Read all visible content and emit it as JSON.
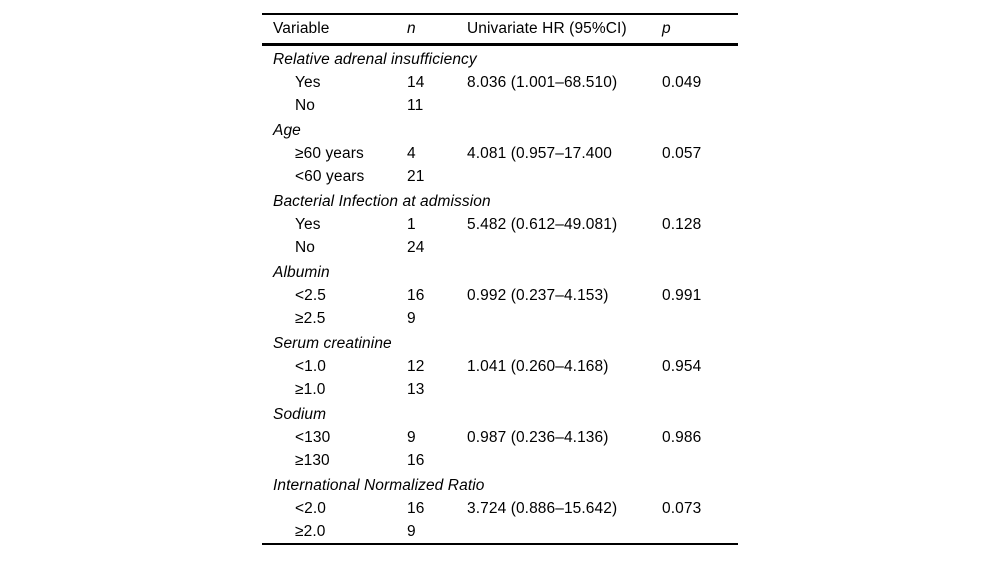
{
  "page": {
    "background_color": "#ffffff",
    "text_color": "#000000",
    "rule_color": "#000000"
  },
  "table": {
    "header": {
      "variable": "Variable",
      "n": "n",
      "hr": "Univariate HR (95%CI)",
      "p": "p"
    },
    "rows": [
      {
        "type": "group",
        "variable": "Relative adrenal insufficiency",
        "n": "",
        "hr": "",
        "p": ""
      },
      {
        "type": "item",
        "variable": "Yes",
        "n": "14",
        "hr": "8.036 (1.001–68.510)",
        "p": "0.049"
      },
      {
        "type": "item",
        "variable": "No",
        "n": "11",
        "hr": "",
        "p": ""
      },
      {
        "type": "group",
        "variable": "Age",
        "n": "",
        "hr": "",
        "p": ""
      },
      {
        "type": "item",
        "variable": "≥60 years",
        "n": "4",
        "hr": "4.081 (0.957–17.400",
        "p": "0.057"
      },
      {
        "type": "item",
        "variable": "<60 years",
        "n": "21",
        "hr": "",
        "p": ""
      },
      {
        "type": "group",
        "variable": "Bacterial Infection at admission",
        "n": "",
        "hr": "",
        "p": ""
      },
      {
        "type": "item",
        "variable": "Yes",
        "n": "1",
        "hr": "5.482 (0.612–49.081)",
        "p": "0.128"
      },
      {
        "type": "item",
        "variable": "No",
        "n": "24",
        "hr": "",
        "p": ""
      },
      {
        "type": "group",
        "variable": "Albumin",
        "n": "",
        "hr": "",
        "p": ""
      },
      {
        "type": "item",
        "variable": "<2.5",
        "n": "16",
        "hr": "0.992 (0.237–4.153)",
        "p": "0.991"
      },
      {
        "type": "item",
        "variable": "≥2.5",
        "n": "9",
        "hr": "",
        "p": ""
      },
      {
        "type": "group",
        "variable": "Serum creatinine",
        "n": "",
        "hr": "",
        "p": ""
      },
      {
        "type": "item",
        "variable": "<1.0",
        "n": "12",
        "hr": "1.041 (0.260–4.168)",
        "p": "0.954"
      },
      {
        "type": "item",
        "variable": "≥1.0",
        "n": "13",
        "hr": "",
        "p": ""
      },
      {
        "type": "group",
        "variable": "Sodium",
        "n": "",
        "hr": "",
        "p": ""
      },
      {
        "type": "item",
        "variable": "<130",
        "n": "9",
        "hr": "0.987 (0.236–4.136)",
        "p": "0.986"
      },
      {
        "type": "item",
        "variable": "≥130",
        "n": "16",
        "hr": "",
        "p": ""
      },
      {
        "type": "group",
        "variable": "International Normalized Ratio",
        "n": "",
        "hr": "",
        "p": ""
      },
      {
        "type": "item",
        "variable": "<2.0",
        "n": "16",
        "hr": "3.724 (0.886–15.642)",
        "p": "0.073"
      },
      {
        "type": "item",
        "variable": "≥2.0",
        "n": "9",
        "hr": "",
        "p": ""
      }
    ]
  }
}
